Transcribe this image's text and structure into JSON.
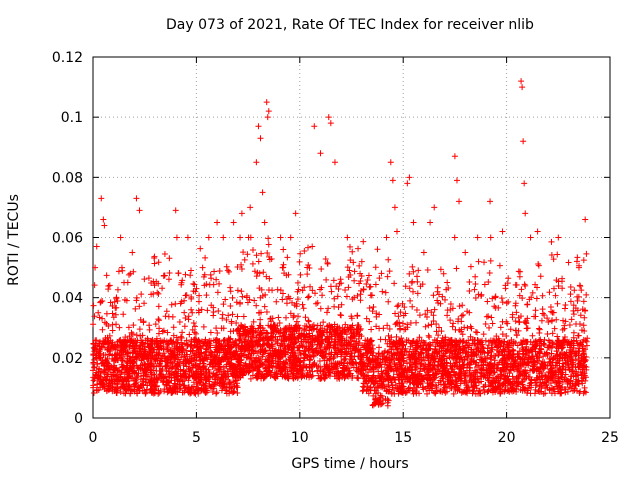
{
  "chart_data": {
    "type": "scatter",
    "title": "Day 073 of 2021, Rate Of TEC Index for receiver nlib",
    "xlabel": "GPS time / hours",
    "ylabel": "ROTI / TECUs",
    "xlim": [
      0,
      25
    ],
    "ylim": [
      0,
      0.12
    ],
    "xticks": [
      "0",
      "5",
      "10",
      "15",
      "20",
      "25"
    ],
    "yticks": [
      "0",
      "0.02",
      "0.04",
      "0.06",
      "0.08",
      "0.1",
      "0.12"
    ],
    "grid": true,
    "marker": "+",
    "color": "#ff0000",
    "series": [
      {
        "x": [
          0.1,
          0.25,
          0.4,
          0.5,
          0.55,
          1.4,
          1.5,
          1.9,
          2.1,
          2.25,
          4.0,
          5.3,
          5.6,
          6.0,
          6.3,
          6.8,
          7.2,
          7.6,
          7.9,
          8.0,
          8.1,
          8.2,
          8.3,
          8.4,
          8.45,
          8.5,
          9.2,
          9.8,
          10.6,
          10.7,
          11.0,
          11.4,
          11.5,
          11.7,
          12.3,
          13.0,
          14.4,
          14.5,
          14.6,
          14.7,
          15.2,
          15.3,
          15.5,
          16.0,
          16.3,
          16.5,
          17.5,
          17.6,
          17.7,
          18.0,
          18.6,
          19.2,
          19.8,
          20.7,
          20.75,
          20.8,
          20.85,
          20.9,
          21.5,
          22.5,
          23.5,
          23.8
        ],
        "y": [
          0.05,
          0.035,
          0.073,
          0.066,
          0.064,
          0.05,
          0.045,
          0.055,
          0.073,
          0.069,
          0.069,
          0.05,
          0.06,
          0.065,
          0.06,
          0.065,
          0.068,
          0.07,
          0.085,
          0.097,
          0.093,
          0.075,
          0.065,
          0.105,
          0.1,
          0.102,
          0.056,
          0.068,
          0.057,
          0.097,
          0.088,
          0.1,
          0.098,
          0.085,
          0.06,
          0.052,
          0.085,
          0.079,
          0.07,
          0.062,
          0.078,
          0.08,
          0.065,
          0.055,
          0.065,
          0.07,
          0.087,
          0.079,
          0.072,
          0.055,
          0.06,
          0.072,
          0.062,
          0.112,
          0.11,
          0.092,
          0.078,
          0.068,
          0.062,
          0.06,
          0.05,
          0.066
        ]
      }
    ]
  }
}
